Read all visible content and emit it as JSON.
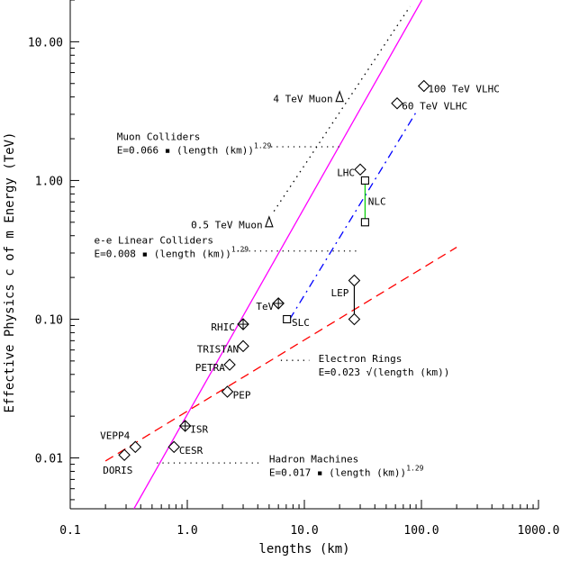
{
  "chart_data": {
    "type": "scatter",
    "xlabel": "lengths (km)",
    "ylabel": "Effective Physics c of m Energy  (TeV)",
    "x_scale": "log",
    "y_scale": "log",
    "xlim": [
      0.1,
      1000
    ],
    "ylim": [
      0.0043,
      20
    ],
    "x_ticks": [
      {
        "value": 0.1,
        "label": "0.1"
      },
      {
        "value": 1,
        "label": "1.0"
      },
      {
        "value": 10,
        "label": "10.0"
      },
      {
        "value": 100,
        "label": "100.0"
      },
      {
        "value": 1000,
        "label": "1000.0"
      }
    ],
    "y_ticks": [
      {
        "value": 0.01,
        "label": "0.01"
      },
      {
        "value": 0.1,
        "label": "0.10"
      },
      {
        "value": 1,
        "label": "1.00"
      },
      {
        "value": 10,
        "label": "10.00"
      }
    ],
    "grid": false,
    "fit_lines": [
      {
        "id": "hadron",
        "color": "#ff00ff",
        "dash": "solid",
        "x": [
          0.35,
          101
        ],
        "y": [
          0.0043,
          20
        ]
      },
      {
        "id": "electron",
        "color": "#ff0000",
        "dash": "long-dash",
        "x": [
          0.2,
          200
        ],
        "y": [
          0.0095,
          0.33
        ]
      },
      {
        "id": "linear",
        "color": "#0000ff",
        "dash": "dash-dot",
        "x": [
          7.5,
          90
        ],
        "y": [
          0.1,
          3.1
        ]
      },
      {
        "id": "muon",
        "color": "#000000",
        "dash": "dotted",
        "x": [
          5.5,
          80
        ],
        "y": [
          0.6,
          18
        ]
      }
    ],
    "points": [
      {
        "name": "DORIS",
        "x": 0.29,
        "y": 0.0105,
        "marker": "diamond"
      },
      {
        "name": "VEPP4",
        "x": 0.36,
        "y": 0.012,
        "marker": "diamond"
      },
      {
        "name": "CESR",
        "x": 0.77,
        "y": 0.012,
        "marker": "diamond"
      },
      {
        "name": "ISR",
        "x": 0.96,
        "y": 0.017,
        "marker": "diamond-cross"
      },
      {
        "name": "PEP",
        "x": 2.2,
        "y": 0.03,
        "marker": "diamond"
      },
      {
        "name": "PETRA",
        "x": 2.3,
        "y": 0.047,
        "marker": "diamond"
      },
      {
        "name": "TRISTAN",
        "x": 3.0,
        "y": 0.064,
        "marker": "diamond"
      },
      {
        "name": "RHIC",
        "x": 3.0,
        "y": 0.092,
        "marker": "diamond-cross"
      },
      {
        "name": "TeV",
        "x": 6.0,
        "y": 0.13,
        "marker": "diamond-cross"
      },
      {
        "name": "SLC",
        "x": 7.1,
        "y": 0.1,
        "marker": "square"
      },
      {
        "name": "LEP",
        "x": 26.7,
        "y": 0.19,
        "marker": "diamond",
        "connect_to_y": 0.1
      },
      {
        "name": "LEP-low",
        "x": 26.7,
        "y": 0.1,
        "marker": "diamond"
      },
      {
        "name": "LHC",
        "x": 30.0,
        "y": 1.2,
        "marker": "diamond"
      },
      {
        "name": "NLC",
        "x": 33.0,
        "y": 1.0,
        "marker": "square",
        "connect_to_y": 0.5
      },
      {
        "name": "NLC-low",
        "x": 33.0,
        "y": 0.5,
        "marker": "square"
      },
      {
        "name": "60 TeV VLHC",
        "x": 62,
        "y": 3.6,
        "marker": "diamond"
      },
      {
        "name": "100 TeV VLHC",
        "x": 105,
        "y": 4.8,
        "marker": "diamond"
      },
      {
        "name": "4 TeV Muon",
        "x": 20,
        "y": 4.0,
        "marker": "triangle"
      },
      {
        "name": "0.5 TeV Muon",
        "x": 5.0,
        "y": 0.5,
        "marker": "triangle"
      }
    ],
    "point_labels": [
      {
        "text": "DORIS",
        "x": 0.19,
        "y": 0.0082,
        "anchor": "start"
      },
      {
        "text": "VEPP4",
        "x": 0.18,
        "y": 0.0145,
        "anchor": "start"
      },
      {
        "text": "CESR",
        "x": 0.85,
        "y": 0.0114,
        "anchor": "start"
      },
      {
        "text": "ISR",
        "x": 1.06,
        "y": 0.0162,
        "anchor": "start"
      },
      {
        "text": "PEP",
        "x": 2.45,
        "y": 0.0285,
        "anchor": "start"
      },
      {
        "text": "PETRA",
        "x": 2.1,
        "y": 0.045,
        "anchor": "end"
      },
      {
        "text": "TRISTAN",
        "x": 2.75,
        "y": 0.061,
        "anchor": "end"
      },
      {
        "text": "RHIC",
        "x": 2.55,
        "y": 0.088,
        "anchor": "end"
      },
      {
        "text": "TeV",
        "x": 5.5,
        "y": 0.124,
        "anchor": "end"
      },
      {
        "text": "SLC",
        "x": 7.8,
        "y": 0.095,
        "anchor": "start"
      },
      {
        "text": "LEP",
        "x": 24.0,
        "y": 0.155,
        "anchor": "end"
      },
      {
        "text": "LHC",
        "x": 27.0,
        "y": 1.14,
        "anchor": "end"
      },
      {
        "text": "NLC",
        "x": 35.0,
        "y": 0.71,
        "anchor": "start"
      },
      {
        "text": "60 TeV VLHC",
        "x": 68,
        "y": 3.45,
        "anchor": "start"
      },
      {
        "text": "100 TeV VLHC",
        "x": 114,
        "y": 4.6,
        "anchor": "start"
      },
      {
        "text": "4 TeV Muon",
        "x": 17.5,
        "y": 3.9,
        "anchor": "end"
      },
      {
        "text": "0.5 TeV Muon",
        "x": 4.4,
        "y": 0.48,
        "anchor": "end"
      }
    ],
    "annotations": [
      {
        "line1": "Muon Colliders",
        "line2": "E=0.066 ▪ (length (km))",
        "exponent": "1.29",
        "x": 0.25,
        "y": 1.95,
        "leader": [
          [
            5.2,
            1.75
          ],
          [
            20,
            1.75
          ]
        ]
      },
      {
        "line1": "e-e Linear Colliders",
        "line2": "E=0.008 ▪ (length (km))",
        "exponent": "1.29",
        "x": 0.16,
        "y": 0.35,
        "leader": [
          [
            2.7,
            0.31
          ],
          [
            28,
            0.31
          ]
        ]
      },
      {
        "line1": "Electron Rings",
        "line2": "E=0.023 √(length (km))",
        "exponent": "",
        "x": 13.2,
        "y": 0.049,
        "leader": [
          [
            6.3,
            0.0505
          ],
          [
            11.0,
            0.0505
          ]
        ]
      },
      {
        "line1": "Hadron Machines",
        "line2": "E=0.017 ▪ (length (km))",
        "exponent": "1.29",
        "x": 5.0,
        "y": 0.0093,
        "leader": [
          [
            0.55,
            0.0092
          ],
          [
            4.4,
            0.0092
          ]
        ]
      }
    ]
  }
}
